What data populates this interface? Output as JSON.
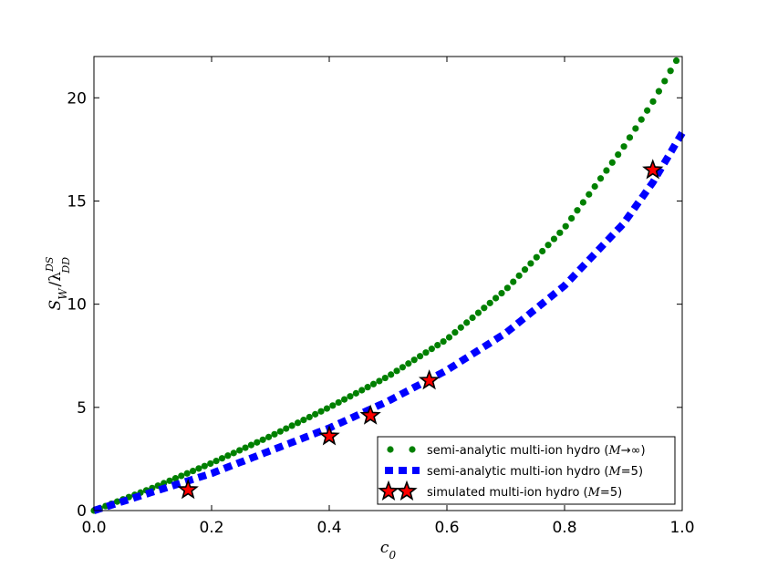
{
  "chart_data": {
    "type": "scatter",
    "xlabel": "c0",
    "ylabel": "S_W / λ_DD^DS",
    "xlim": [
      0.0,
      1.0
    ],
    "ylim": [
      0,
      22
    ],
    "x_ticks": [
      "0.0",
      "0.2",
      "0.4",
      "0.6",
      "0.8",
      "1.0"
    ],
    "y_ticks": [
      "0",
      "5",
      "10",
      "15",
      "20"
    ],
    "grid": false,
    "legend_position": "bottom-right",
    "series": [
      {
        "name": "semi-analytic multi-ion hydro (M→∞)",
        "style": "dots",
        "color": "#008000",
        "x": [
          0.0,
          0.1,
          0.2,
          0.3,
          0.4,
          0.5,
          0.6,
          0.7,
          0.8,
          0.9,
          0.95,
          0.99
        ],
        "y": [
          0.0,
          1.1,
          2.3,
          3.6,
          5.0,
          6.5,
          8.3,
          10.7,
          13.7,
          17.6,
          19.8,
          21.8
        ]
      },
      {
        "name": "semi-analytic multi-ion hydro (M=5)",
        "style": "dashed",
        "color": "#0000ff",
        "x": [
          0.0,
          0.1,
          0.2,
          0.3,
          0.4,
          0.5,
          0.6,
          0.7,
          0.8,
          0.9,
          0.95,
          1.0
        ],
        "y": [
          0.0,
          0.9,
          1.8,
          2.9,
          4.0,
          5.3,
          6.8,
          8.6,
          10.9,
          13.9,
          15.9,
          18.3
        ]
      },
      {
        "name": "simulated multi-ion hydro (M=5)",
        "style": "stars",
        "color": "#ff0000",
        "x": [
          0.16,
          0.4,
          0.47,
          0.57,
          0.95
        ],
        "y": [
          1.0,
          3.6,
          4.6,
          6.3,
          16.5
        ]
      }
    ]
  }
}
